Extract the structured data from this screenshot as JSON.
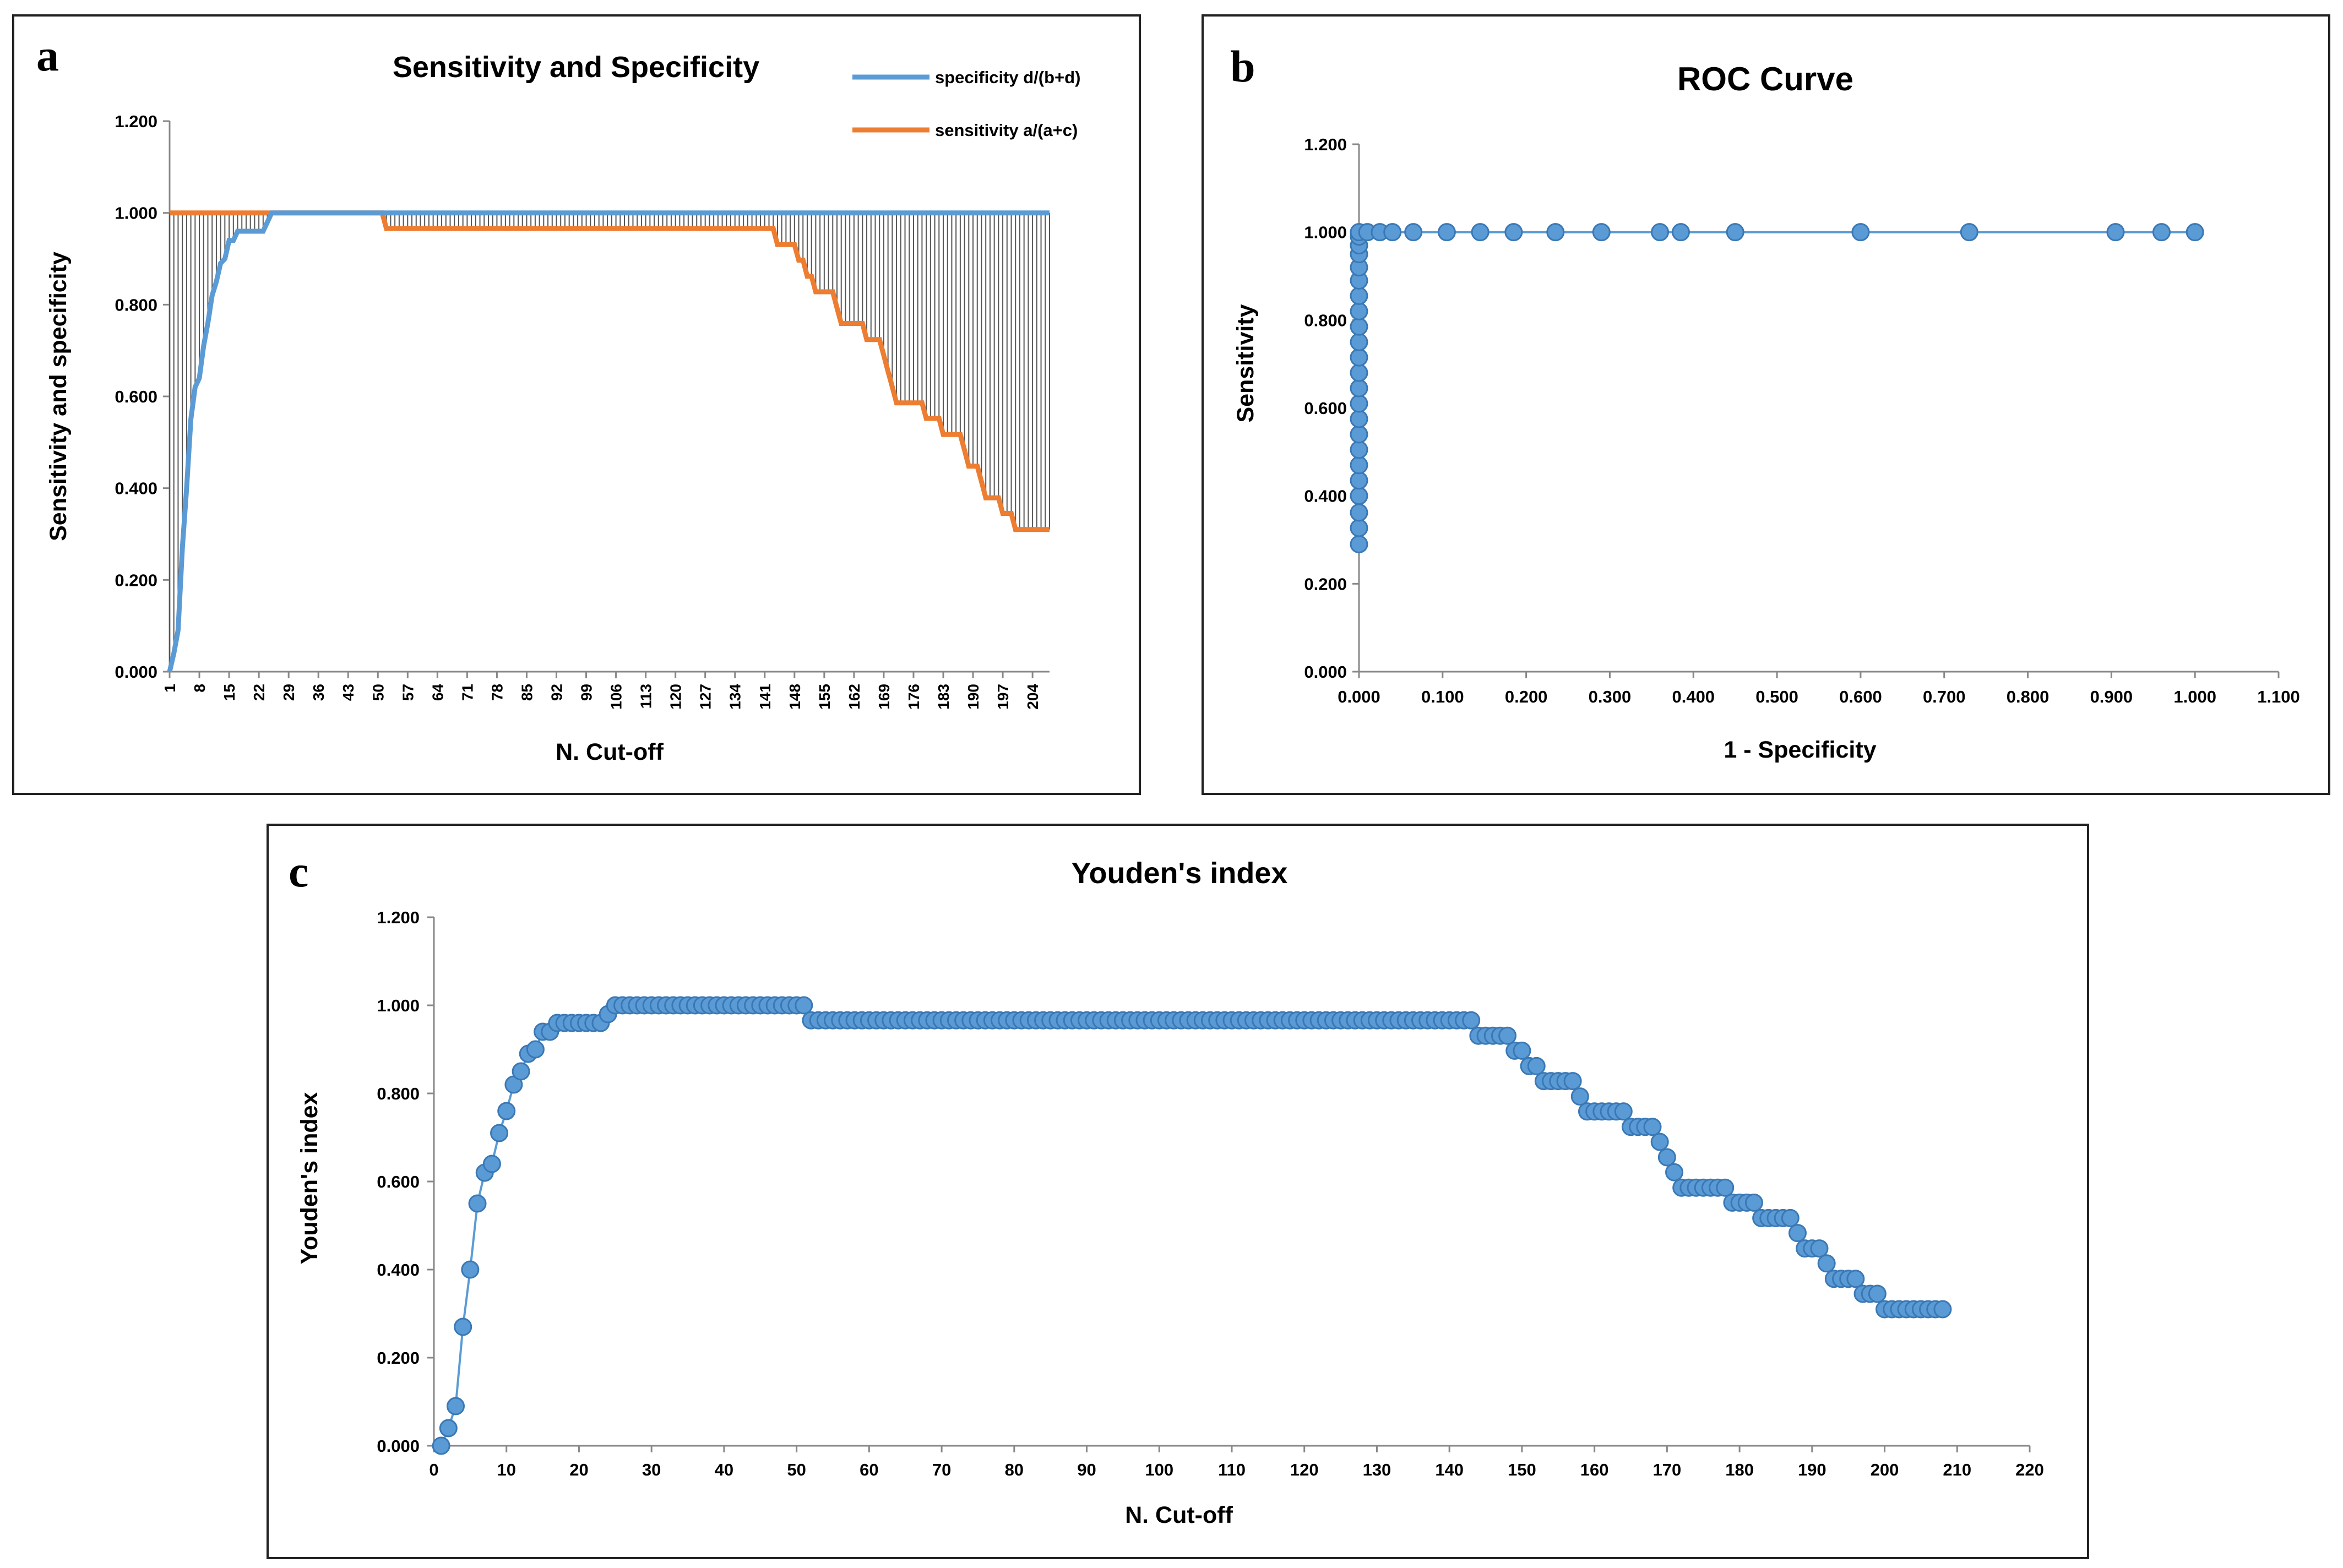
{
  "chart_data": [
    {
      "panel": "a",
      "type": "line",
      "title": "Sensitivity and Specificity",
      "xlabel": "N. Cut-off",
      "ylabel": "Sensitivity  and specificity",
      "y_ticks": [
        "0.000",
        "0.200",
        "0.400",
        "0.600",
        "0.800",
        "1.000",
        "1.200"
      ],
      "ylim": [
        0,
        1.2
      ],
      "xlim": [
        1,
        208
      ],
      "x_tick_labels": [
        "1",
        "8",
        "15",
        "22",
        "29",
        "36",
        "43",
        "50",
        "57",
        "64",
        "71",
        "78",
        "85",
        "92",
        "99",
        "106",
        "113",
        "120",
        "127",
        "134",
        "141",
        "148",
        "155",
        "162",
        "169",
        "176",
        "183",
        "190",
        "197",
        "204"
      ],
      "x_tick_step": 7,
      "grid": false,
      "legend_position": "top-right",
      "series": [
        {
          "name": "specificity d/(b+d)",
          "color": "#5B9BD5",
          "points": [
            [
              1,
              0
            ],
            [
              2,
              0.04
            ],
            [
              3,
              0.09
            ],
            [
              4,
              0.27
            ],
            [
              5,
              0.4
            ],
            [
              6,
              0.55
            ],
            [
              7,
              0.62
            ],
            [
              8,
              0.64
            ],
            [
              9,
              0.71
            ],
            [
              10,
              0.76
            ],
            [
              11,
              0.82
            ],
            [
              12,
              0.85
            ],
            [
              13,
              0.89
            ],
            [
              14,
              0.9
            ],
            [
              15,
              0.94
            ],
            [
              16,
              0.94
            ],
            [
              17,
              0.96
            ],
            [
              23,
              0.96
            ],
            [
              24,
              0.98
            ],
            [
              25,
              1.0
            ],
            [
              208,
              1.0
            ]
          ]
        },
        {
          "name": "sensitivity a/(a+c)",
          "color": "#ED7D31",
          "points": [
            [
              1,
              1.0
            ],
            [
              51,
              1.0
            ],
            [
              52,
              0.966
            ],
            [
              143,
              0.966
            ],
            [
              144,
              0.931
            ],
            [
              148,
              0.931
            ],
            [
              149,
              0.897
            ],
            [
              150,
              0.897
            ],
            [
              151,
              0.862
            ],
            [
              152,
              0.862
            ],
            [
              153,
              0.828
            ],
            [
              157,
              0.828
            ],
            [
              158,
              0.793
            ],
            [
              159,
              0.759
            ],
            [
              164,
              0.759
            ],
            [
              165,
              0.724
            ],
            [
              168,
              0.724
            ],
            [
              169,
              0.69
            ],
            [
              170,
              0.655
            ],
            [
              171,
              0.621
            ],
            [
              172,
              0.586
            ],
            [
              178,
              0.586
            ],
            [
              179,
              0.552
            ],
            [
              182,
              0.552
            ],
            [
              183,
              0.517
            ],
            [
              187,
              0.517
            ],
            [
              188,
              0.483
            ],
            [
              189,
              0.448
            ],
            [
              191,
              0.448
            ],
            [
              192,
              0.414
            ],
            [
              193,
              0.379
            ],
            [
              196,
              0.379
            ],
            [
              197,
              0.345
            ],
            [
              199,
              0.345
            ],
            [
              200,
              0.31
            ],
            [
              208,
              0.31
            ]
          ]
        }
      ],
      "drop_lines": true
    },
    {
      "panel": "b",
      "type": "scatter",
      "title": "ROC Curve",
      "xlabel": "1 - Specificity",
      "ylabel": "Sensitivity",
      "y_ticks": [
        "0.000",
        "0.200",
        "0.400",
        "0.600",
        "0.800",
        "1.000",
        "1.200"
      ],
      "x_ticks": [
        "0.000",
        "0.100",
        "0.200",
        "0.300",
        "0.400",
        "0.500",
        "0.600",
        "0.700",
        "0.800",
        "0.900",
        "1.000",
        "1.100"
      ],
      "xlim": [
        0,
        1.1
      ],
      "ylim": [
        0,
        1.2
      ],
      "grid": false,
      "color": "#5B9BD5",
      "x": [
        0,
        0,
        0,
        0,
        0,
        0,
        0,
        0,
        0,
        0,
        0,
        0,
        0,
        0,
        0,
        0,
        0,
        0,
        0,
        0,
        0,
        0,
        0,
        0.01,
        0.025,
        0.04,
        0.065,
        0.105,
        0.145,
        0.185,
        0.235,
        0.29,
        0.36,
        0.385,
        0.45,
        0.6,
        0.73,
        0.905,
        0.96,
        1.0
      ],
      "y": [
        0.29,
        0.327,
        0.362,
        0.4,
        0.435,
        0.47,
        0.505,
        0.54,
        0.575,
        0.61,
        0.645,
        0.68,
        0.715,
        0.75,
        0.785,
        0.82,
        0.855,
        0.89,
        0.92,
        0.95,
        0.97,
        0.99,
        1.0,
        1.0,
        1.0,
        1.0,
        1.0,
        1.0,
        1.0,
        1.0,
        1.0,
        1.0,
        1.0,
        1.0,
        1.0,
        1.0,
        1.0,
        1.0,
        1.0,
        1.0
      ]
    },
    {
      "panel": "c",
      "type": "line",
      "title": "Youden's index",
      "xlabel": "N. Cut-off",
      "ylabel": "Youden's index",
      "y_ticks": [
        "0.000",
        "0.200",
        "0.400",
        "0.600",
        "0.800",
        "1.000",
        "1.200"
      ],
      "x_ticks": [
        "0",
        "10",
        "20",
        "30",
        "40",
        "50",
        "60",
        "70",
        "80",
        "90",
        "100",
        "110",
        "120",
        "130",
        "140",
        "150",
        "160",
        "170",
        "180",
        "190",
        "200",
        "210",
        "220"
      ],
      "xlim": [
        0,
        220
      ],
      "ylim": [
        0,
        1.2
      ],
      "grid": false,
      "color": "#5B9BD5",
      "markers": true,
      "points": [
        [
          1,
          0
        ],
        [
          2,
          0.04
        ],
        [
          3,
          0.09
        ],
        [
          4,
          0.27
        ],
        [
          5,
          0.4
        ],
        [
          6,
          0.55
        ],
        [
          7,
          0.62
        ],
        [
          8,
          0.64
        ],
        [
          9,
          0.71
        ],
        [
          10,
          0.76
        ],
        [
          11,
          0.82
        ],
        [
          12,
          0.85
        ],
        [
          13,
          0.89
        ],
        [
          14,
          0.9
        ],
        [
          15,
          0.94
        ],
        [
          16,
          0.94
        ],
        [
          17,
          0.96
        ],
        [
          23,
          0.96
        ],
        [
          24,
          0.98
        ],
        [
          25,
          1.0
        ],
        [
          51,
          1.0
        ],
        [
          52,
          0.966
        ],
        [
          143,
          0.966
        ],
        [
          144,
          0.931
        ],
        [
          148,
          0.931
        ],
        [
          149,
          0.897
        ],
        [
          150,
          0.897
        ],
        [
          151,
          0.862
        ],
        [
          152,
          0.862
        ],
        [
          153,
          0.828
        ],
        [
          157,
          0.828
        ],
        [
          158,
          0.793
        ],
        [
          159,
          0.759
        ],
        [
          164,
          0.759
        ],
        [
          165,
          0.724
        ],
        [
          168,
          0.724
        ],
        [
          169,
          0.69
        ],
        [
          170,
          0.655
        ],
        [
          171,
          0.621
        ],
        [
          172,
          0.586
        ],
        [
          178,
          0.586
        ],
        [
          179,
          0.552
        ],
        [
          182,
          0.552
        ],
        [
          183,
          0.517
        ],
        [
          187,
          0.517
        ],
        [
          188,
          0.483
        ],
        [
          189,
          0.448
        ],
        [
          191,
          0.448
        ],
        [
          192,
          0.414
        ],
        [
          193,
          0.379
        ],
        [
          196,
          0.379
        ],
        [
          197,
          0.345
        ],
        [
          199,
          0.345
        ],
        [
          200,
          0.31
        ],
        [
          208,
          0.31
        ]
      ]
    }
  ]
}
